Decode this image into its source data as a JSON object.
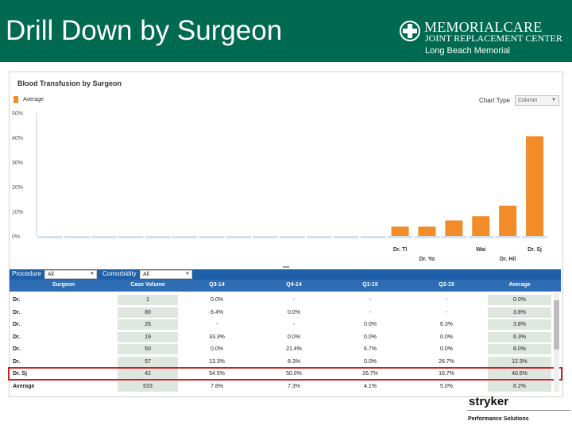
{
  "slide": {
    "title": "Drill Down by Surgeon"
  },
  "logo": {
    "line1": "MEMORIALCARE",
    "line2": "JOINT REPLACEMENT CENTER",
    "subtitle": "Long Beach Memorial"
  },
  "panel": {
    "chart_title": "Blood Transfusion by Surgeon",
    "legend_label": "Average",
    "chart_type_label": "Chart Type",
    "chart_type_value": "Column"
  },
  "chart_data": {
    "type": "bar",
    "title": "Blood Transfusion by Surgeon",
    "ylim": [
      0,
      50
    ],
    "yticks": [
      "50%",
      "40%",
      "30%",
      "20%",
      "10%",
      "0%"
    ],
    "series": [
      {
        "name": "Average",
        "color": "#f28c28",
        "values": [
          0,
          0,
          0,
          0,
          0,
          0,
          0,
          0,
          0,
          0,
          0,
          0,
          0.0,
          3.8,
          3.8,
          6.3,
          8.0,
          12.3,
          40.5
        ]
      }
    ],
    "x_labels_upper": [
      "Dr. Tl",
      "Wai",
      "Dr. Sj"
    ],
    "x_labels_lower": [
      "Dr. Yo",
      "Dr. Hil"
    ]
  },
  "filters": {
    "procedure_label": "Procedure",
    "procedure_value": "All",
    "comorbidity_label": "Comorbidity",
    "comorbidity_value": "All"
  },
  "table": {
    "headers": [
      "Surgeon",
      "Case Volume",
      "Q3-14",
      "Q4-14",
      "Q1-15",
      "Q2-15",
      "Average"
    ],
    "rows": [
      [
        "Dr.",
        "1",
        "0.0%",
        "-",
        "-",
        "-",
        "0.0%"
      ],
      [
        "Dr.",
        "80",
        "6.4%",
        "0.0%",
        "-",
        "-",
        "3.8%"
      ],
      [
        "Dr.",
        "26",
        "-",
        "-",
        "0.0%",
        "6.3%",
        "3.8%"
      ],
      [
        "Dr.",
        "19",
        "33.3%",
        "0.0%",
        "0.0%",
        "0.0%",
        "6.3%"
      ],
      [
        "Dr.",
        "50",
        "0.0%",
        "21.4%",
        "6.7%",
        "0.0%",
        "8.0%"
      ],
      [
        "Dr.",
        "57",
        "13.3%",
        "8.3%",
        "0.0%",
        "26.7%",
        "12.3%"
      ],
      [
        "Dr. Sj",
        "42",
        "54.5%",
        "50.0%",
        "26.7%",
        "16.7%",
        "40.5%"
      ],
      [
        "Average",
        "533",
        "7.8%",
        "7.3%",
        "4.1%",
        "5.0%",
        "8.2%"
      ]
    ]
  },
  "footer": {
    "brand": "stryker",
    "tagline": "Performance Solutions"
  }
}
